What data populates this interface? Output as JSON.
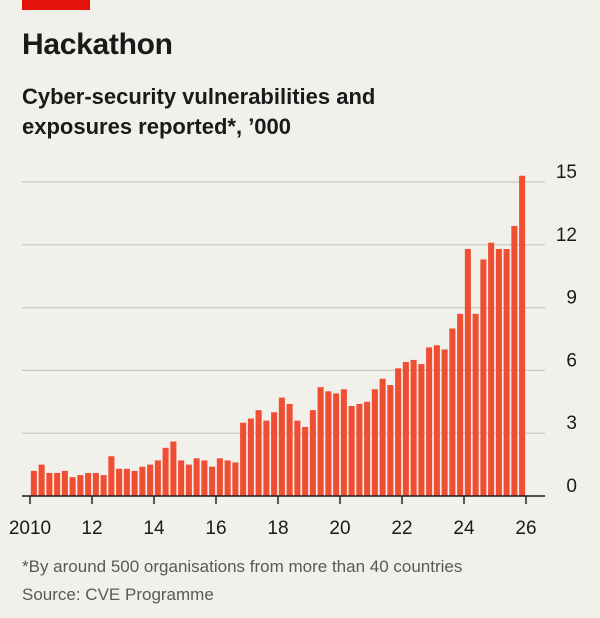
{
  "header": {
    "title": "Hackathon",
    "subtitle": "Cyber-security vulnerabilities and exposures reported*, ’000"
  },
  "footnote": "*By around 500 organisations from more than 40 countries",
  "source": "Source: CVE Programme",
  "colors": {
    "bar": "#f04e33",
    "brand_tag": "#e3120b",
    "gridline": "#c8c7c2",
    "background": "#f1f0eb"
  },
  "chart_data": {
    "type": "bar",
    "frequency": "quarterly",
    "categories": [
      "2010 Q1",
      "2010 Q2",
      "2010 Q3",
      "2010 Q4",
      "2011 Q1",
      "2011 Q2",
      "2011 Q3",
      "2011 Q4",
      "2012 Q1",
      "2012 Q2",
      "2012 Q3",
      "2012 Q4",
      "2013 Q1",
      "2013 Q2",
      "2013 Q3",
      "2013 Q4",
      "2014 Q1",
      "2014 Q2",
      "2014 Q3",
      "2014 Q4",
      "2015 Q1",
      "2015 Q2",
      "2015 Q3",
      "2015 Q4",
      "2016 Q1",
      "2016 Q2",
      "2016 Q3",
      "2016 Q4",
      "2017 Q1",
      "2017 Q2",
      "2017 Q3",
      "2017 Q4",
      "2018 Q1",
      "2018 Q2",
      "2018 Q3",
      "2018 Q4",
      "2019 Q1",
      "2019 Q2",
      "2019 Q3",
      "2019 Q4",
      "2020 Q1",
      "2020 Q2",
      "2020 Q3",
      "2020 Q4",
      "2021 Q1",
      "2021 Q2",
      "2021 Q3",
      "2021 Q4",
      "2022 Q1",
      "2022 Q2",
      "2022 Q3",
      "2022 Q4",
      "2023 Q1",
      "2023 Q2",
      "2023 Q3",
      "2023 Q4",
      "2024 Q1",
      "2024 Q2",
      "2024 Q3",
      "2024 Q4",
      "2025 Q1",
      "2025 Q2",
      "2025 Q3",
      "2025 Q4"
    ],
    "values": [
      1.2,
      1.5,
      1.1,
      1.1,
      1.2,
      0.9,
      1.0,
      1.1,
      1.1,
      1.0,
      1.9,
      1.3,
      1.3,
      1.2,
      1.4,
      1.5,
      1.7,
      2.3,
      2.6,
      1.7,
      1.5,
      1.8,
      1.7,
      1.4,
      1.8,
      1.7,
      1.6,
      3.5,
      3.7,
      4.1,
      3.6,
      4.0,
      4.7,
      4.4,
      3.6,
      3.3,
      4.1,
      5.2,
      5.0,
      4.9,
      5.1,
      4.3,
      4.4,
      4.5,
      5.1,
      5.6,
      5.3,
      6.1,
      6.4,
      6.5,
      6.3,
      7.1,
      7.2,
      7.0,
      8.0,
      8.7,
      11.8,
      8.7,
      11.3,
      12.1,
      11.8,
      11.8,
      12.9,
      15.3
    ],
    "y_ticks": [
      "0",
      "3",
      "6",
      "9",
      "12",
      "15"
    ],
    "ylim": [
      0,
      15
    ],
    "x_tick_labels": [
      "2010",
      "12",
      "14",
      "16",
      "18",
      "20",
      "22",
      "24",
      "26"
    ],
    "x_tick_years": [
      2010,
      2012,
      2014,
      2016,
      2018,
      2020,
      2022,
      2024,
      2026
    ],
    "x_range_years": [
      2010,
      2026
    ],
    "y_axis_side": "right",
    "grid": true,
    "xlabel": "",
    "ylabel": ""
  }
}
